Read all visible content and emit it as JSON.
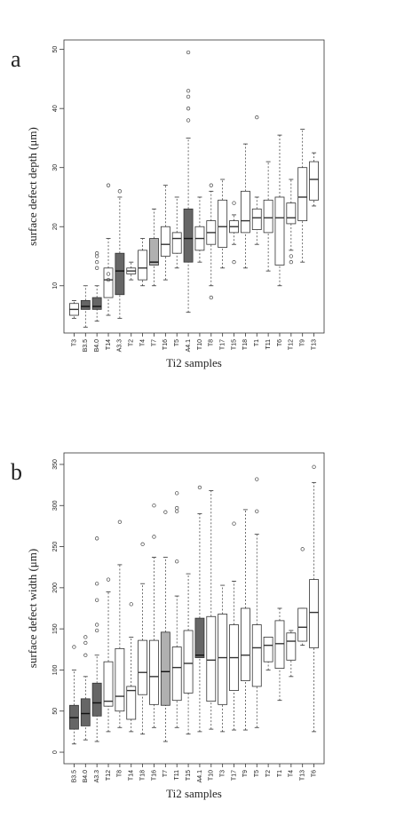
{
  "chart_data": [
    {
      "type": "box",
      "label": "a",
      "ylabel": "surface defect depth (μm)",
      "xlabel": "Ti2 samples",
      "categories": [
        "T3",
        "B3.5",
        "B4.0",
        "T14",
        "A3.3",
        "T2",
        "T4",
        "T7",
        "T16",
        "T5",
        "A4.1",
        "T10",
        "T8",
        "T17",
        "T15",
        "T18",
        "T1",
        "T11",
        "T6",
        "T12",
        "T9",
        "T13"
      ],
      "whisker_low": [
        4.5,
        3,
        4,
        5,
        4.5,
        11,
        10,
        10,
        11,
        13,
        5.5,
        14,
        10,
        13,
        17,
        13,
        17,
        12.5,
        10,
        16,
        14,
        23.5
      ],
      "q1": [
        5,
        6,
        6,
        8,
        8.5,
        12,
        11,
        13.5,
        15,
        15.5,
        14,
        16,
        17,
        16.5,
        19,
        19,
        19.5,
        19,
        13.5,
        20.5,
        21,
        24.5
      ],
      "median": [
        6,
        6.5,
        6.5,
        11,
        12.5,
        12.5,
        13,
        14,
        17,
        18,
        18,
        18,
        19,
        20,
        20,
        21,
        21.5,
        21.5,
        21.5,
        21.5,
        25,
        28
      ],
      "q3": [
        7,
        7.5,
        8,
        13,
        15.5,
        13,
        16,
        18,
        20,
        19,
        23,
        20,
        21,
        24.5,
        21,
        26,
        23,
        24.5,
        25,
        24,
        30,
        31
      ],
      "whisker_high": [
        7.5,
        10,
        10,
        18,
        25,
        14,
        18,
        23,
        27,
        25,
        35,
        25,
        26,
        28,
        22,
        34,
        25,
        31,
        35.5,
        28,
        36.5,
        32.5
      ],
      "outliers": [
        [],
        [],
        [
          13,
          14,
          15,
          15.5
        ],
        [
          11,
          12,
          27
        ],
        [
          26
        ],
        [],
        [],
        [],
        [],
        [],
        [
          38,
          40,
          42,
          43,
          49.5
        ],
        [],
        [
          8,
          27
        ],
        [],
        [
          14,
          24
        ],
        [],
        [
          38.5
        ],
        [],
        [],
        [
          14,
          15
        ],
        [],
        []
      ],
      "colors": [
        "#ffffff",
        "#666666",
        "#666666",
        "#ffffff",
        "#666666",
        "#ffffff",
        "#ffffff",
        "#b0b0b0",
        "#ffffff",
        "#ffffff",
        "#666666",
        "#ffffff",
        "#ffffff",
        "#ffffff",
        "#ffffff",
        "#ffffff",
        "#ffffff",
        "#ffffff",
        "#ffffff",
        "#ffffff",
        "#ffffff",
        "#ffffff"
      ],
      "ylim": [
        2,
        51.6
      ],
      "yticks": [
        10,
        20,
        30,
        40,
        50
      ]
    },
    {
      "type": "box",
      "label": "b",
      "ylabel": "surface defect width (μm)",
      "xlabel": "Ti2 samples",
      "categories": [
        "B3.5",
        "B4.0",
        "A3.3",
        "T12",
        "T8",
        "T14",
        "T18",
        "T16",
        "T7",
        "T11",
        "T15",
        "A4.1",
        "T10",
        "T3",
        "T17",
        "T9",
        "T5",
        "T2",
        "T1",
        "T4",
        "T13",
        "T6"
      ],
      "whisker_low": [
        10,
        15,
        13,
        25,
        30,
        25,
        22,
        30,
        13,
        30,
        22,
        25,
        28,
        25,
        27,
        27,
        30,
        100,
        63,
        92,
        130,
        25
      ],
      "q1": [
        28,
        32,
        44,
        56,
        50,
        40,
        70,
        58,
        57,
        63,
        72,
        115,
        62,
        58,
        75,
        87,
        80,
        110,
        102,
        112,
        135,
        127
      ],
      "median": [
        42,
        47,
        60,
        62,
        68,
        75,
        97,
        92,
        98,
        103,
        108,
        118,
        112,
        115,
        115,
        118,
        127,
        130,
        132,
        135,
        152,
        170
      ],
      "q3": [
        57,
        65,
        84,
        110,
        126,
        80,
        136,
        136,
        146,
        128,
        148,
        163,
        165,
        168,
        155,
        175,
        155,
        140,
        160,
        145,
        175,
        210
      ],
      "whisker_high": [
        100,
        92,
        118,
        195,
        228,
        140,
        205,
        237,
        237,
        190,
        217,
        290,
        318,
        203,
        208,
        295,
        265,
        140,
        175,
        148,
        175,
        328
      ],
      "outliers": [
        [
          128
        ],
        [
          118,
          133,
          140
        ],
        [
          148,
          155,
          185,
          205,
          260
        ],
        [
          210
        ],
        [
          280
        ],
        [
          180
        ],
        [
          253
        ],
        [
          262,
          300
        ],
        [
          292
        ],
        [
          232,
          293,
          297,
          315
        ],
        [],
        [
          322
        ],
        [],
        [],
        [
          278
        ],
        [],
        [
          293,
          332
        ],
        [],
        [],
        [],
        [
          247
        ],
        [
          347
        ]
      ],
      "colors": [
        "#666666",
        "#666666",
        "#666666",
        "#ffffff",
        "#ffffff",
        "#ffffff",
        "#ffffff",
        "#ffffff",
        "#b0b0b0",
        "#ffffff",
        "#ffffff",
        "#666666",
        "#ffffff",
        "#ffffff",
        "#ffffff",
        "#ffffff",
        "#ffffff",
        "#ffffff",
        "#ffffff",
        "#ffffff",
        "#ffffff",
        "#ffffff"
      ],
      "ylim": [
        -14,
        364
      ],
      "yticks": [
        0,
        50,
        100,
        150,
        200,
        250,
        300,
        350
      ]
    }
  ]
}
